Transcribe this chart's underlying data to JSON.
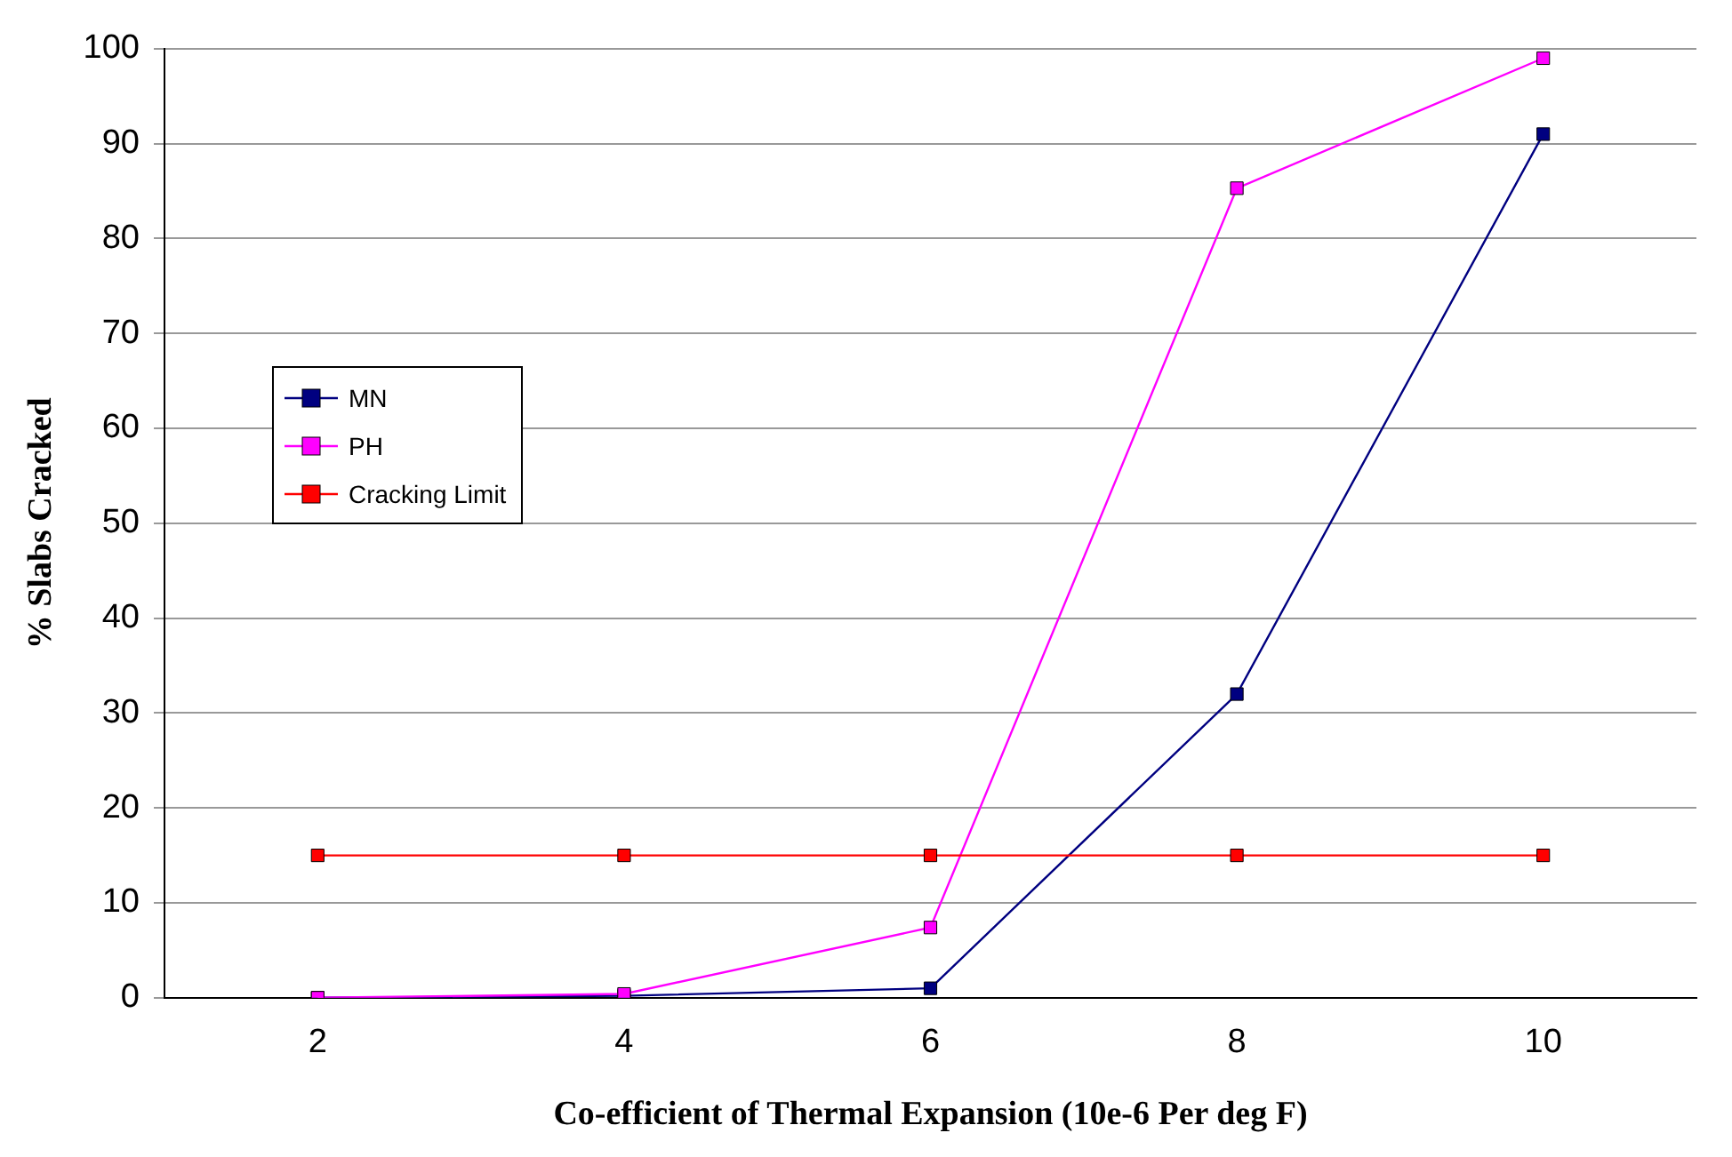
{
  "chart_data": {
    "type": "line",
    "xlabel": "Co-efficient of Thermal Expansion (10e-6 Per deg F)",
    "ylabel": "% Slabs Cracked",
    "categories": [
      "2",
      "4",
      "6",
      "8",
      "10"
    ],
    "series": [
      {
        "name": "MN",
        "color": "#000080",
        "values": [
          0,
          0.2,
          1,
          32,
          91
        ]
      },
      {
        "name": "PH",
        "color": "#ff00ff",
        "values": [
          0,
          0.4,
          7.4,
          85.3,
          99
        ]
      },
      {
        "name": "Cracking Limit",
        "color": "#ff0000",
        "values": [
          15,
          15,
          15,
          15,
          15
        ]
      }
    ],
    "ylim": [
      0,
      100
    ],
    "yticks": [
      0,
      10,
      20,
      30,
      40,
      50,
      60,
      70,
      80,
      90,
      100
    ],
    "grid": "y",
    "legend": "left",
    "marker": "square",
    "line_style": "solid"
  }
}
